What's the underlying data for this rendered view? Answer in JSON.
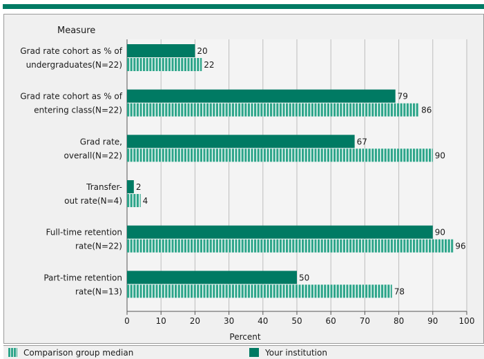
{
  "chart_data": {
    "type": "bar",
    "orientation": "horizontal",
    "yaxis_title": "Measure",
    "xlabel": "Percent",
    "xlim": [
      0,
      100
    ],
    "xticks": [
      0,
      10,
      20,
      30,
      40,
      50,
      60,
      70,
      80,
      90,
      100
    ],
    "grid": true,
    "legend_position": "bottom",
    "categories": [
      [
        "Grad rate cohort as % of",
        "undergraduates(N=22)"
      ],
      [
        "Grad rate cohort as % of",
        "entering class(N=22)"
      ],
      [
        "Grad rate,",
        "overall(N=22)"
      ],
      [
        "Transfer-",
        "out rate(N=4)"
      ],
      [
        "Full-time retention",
        "rate(N=22)"
      ],
      [
        "Part-time retention",
        "rate(N=13)"
      ]
    ],
    "series": [
      {
        "name": "Your institution",
        "values": [
          20,
          79,
          67,
          2,
          90,
          50
        ],
        "color": "#007a63",
        "pattern": "solid"
      },
      {
        "name": "Comparison group median",
        "values": [
          22,
          86,
          90,
          4,
          96,
          78
        ],
        "color": "#2ea58a",
        "pattern": "vertical-stripes"
      }
    ]
  },
  "legend": {
    "comparison_label": "Comparison group median",
    "institution_label": "Your institution"
  }
}
